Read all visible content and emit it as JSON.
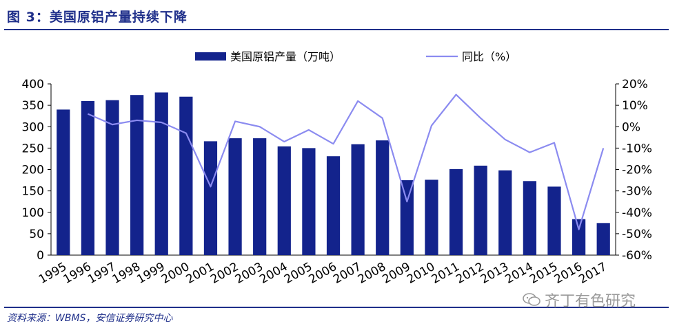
{
  "figure": {
    "title": "图 3：美国原铝产量持续下降",
    "source": "资料来源：WBMS，安信证券研究中心",
    "watermark": "齐丁有色研究"
  },
  "chart_data": {
    "type": "bar",
    "categories": [
      "1995",
      "1996",
      "1997",
      "1998",
      "1999",
      "2000",
      "2001",
      "2002",
      "2003",
      "2004",
      "2005",
      "2006",
      "2007",
      "2008",
      "2009",
      "2010",
      "2011",
      "2012",
      "2013",
      "2014",
      "2015",
      "2016",
      "2017"
    ],
    "series": [
      {
        "name": "美国原铝产量（万吨）",
        "type": "bar",
        "axis": "left",
        "color": "#13238c",
        "values": [
          340,
          360,
          362,
          374,
          380,
          370,
          266,
          273,
          273,
          254,
          250,
          231,
          259,
          268,
          175,
          176,
          201,
          209,
          198,
          173,
          160,
          84,
          75
        ]
      },
      {
        "name": "同比（%）",
        "type": "line",
        "axis": "right",
        "color": "#8b8bf0",
        "values": [
          null,
          6,
          1,
          3,
          2,
          -3,
          -28,
          2.5,
          0,
          -7,
          -1.5,
          -8,
          12,
          4,
          -35,
          0.5,
          15,
          4,
          -6,
          -12,
          -7.5,
          -48,
          -10
        ]
      }
    ],
    "y_left": {
      "min": 0,
      "max": 400,
      "step": 50,
      "ticks": [
        "0",
        "50",
        "100",
        "150",
        "200",
        "250",
        "300",
        "350",
        "400"
      ]
    },
    "y_right": {
      "min": -60,
      "max": 20,
      "step": 10,
      "ticks": [
        "-60%",
        "-50%",
        "-40%",
        "-30%",
        "-20%",
        "-10%",
        "0%",
        "10%",
        "20%"
      ]
    },
    "legend_position": "top",
    "grid": false
  }
}
